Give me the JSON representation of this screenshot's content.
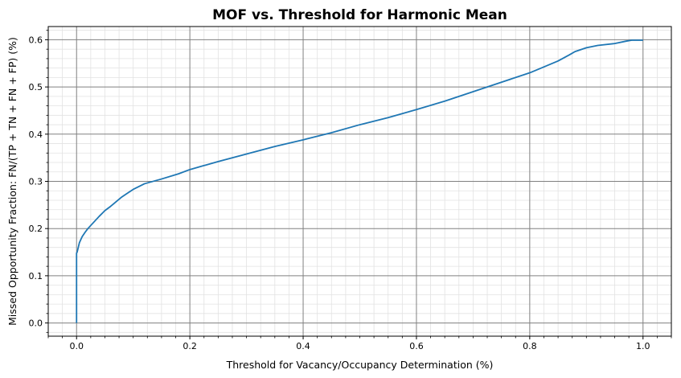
{
  "chart_data": {
    "type": "line",
    "title": "MOF vs. Threshold for Harmonic Mean",
    "xlabel": "Threshold for Vacancy/Occupancy Determination (%)",
    "ylabel": "Missed Opportunity Fraction: FN/(TP + TN + FN + FP) (%)",
    "xlim": [
      -0.05,
      1.05
    ],
    "ylim": [
      -0.028,
      0.628
    ],
    "x_ticks": [
      0.0,
      0.2,
      0.4,
      0.6,
      0.8,
      1.0
    ],
    "x_tick_labels": [
      "0.0",
      "0.2",
      "0.4",
      "0.6",
      "0.8",
      "1.0"
    ],
    "y_ticks": [
      0.0,
      0.1,
      0.2,
      0.3,
      0.4,
      0.5,
      0.6
    ],
    "y_tick_labels": [
      "0.0",
      "0.1",
      "0.2",
      "0.3",
      "0.4",
      "0.5",
      "0.6"
    ],
    "x_minor_step": 0.025,
    "y_minor_step": 0.02,
    "grid": true,
    "colors": {
      "line": "#1f77b4",
      "major_grid": "#808080",
      "minor_grid": "#e2e2e2"
    },
    "series": [
      {
        "x": [
          0.0,
          0.0,
          0.001,
          0.003,
          0.005,
          0.008,
          0.01,
          0.015,
          0.02,
          0.03,
          0.04,
          0.05,
          0.06,
          0.07,
          0.08,
          0.09,
          0.1,
          0.12,
          0.15,
          0.18,
          0.2,
          0.25,
          0.3,
          0.35,
          0.4,
          0.45,
          0.5,
          0.55,
          0.6,
          0.65,
          0.7,
          0.75,
          0.8,
          0.82,
          0.85,
          0.87,
          0.88,
          0.9,
          0.92,
          0.95,
          0.97,
          0.98,
          1.0
        ],
        "y": [
          0.0,
          0.148,
          0.15,
          0.16,
          0.17,
          0.178,
          0.183,
          0.192,
          0.2,
          0.213,
          0.226,
          0.238,
          0.247,
          0.257,
          0.267,
          0.275,
          0.283,
          0.295,
          0.305,
          0.316,
          0.325,
          0.342,
          0.358,
          0.374,
          0.388,
          0.403,
          0.42,
          0.435,
          0.452,
          0.47,
          0.49,
          0.51,
          0.53,
          0.54,
          0.555,
          0.568,
          0.575,
          0.583,
          0.588,
          0.592,
          0.597,
          0.599,
          0.599
        ]
      }
    ]
  }
}
